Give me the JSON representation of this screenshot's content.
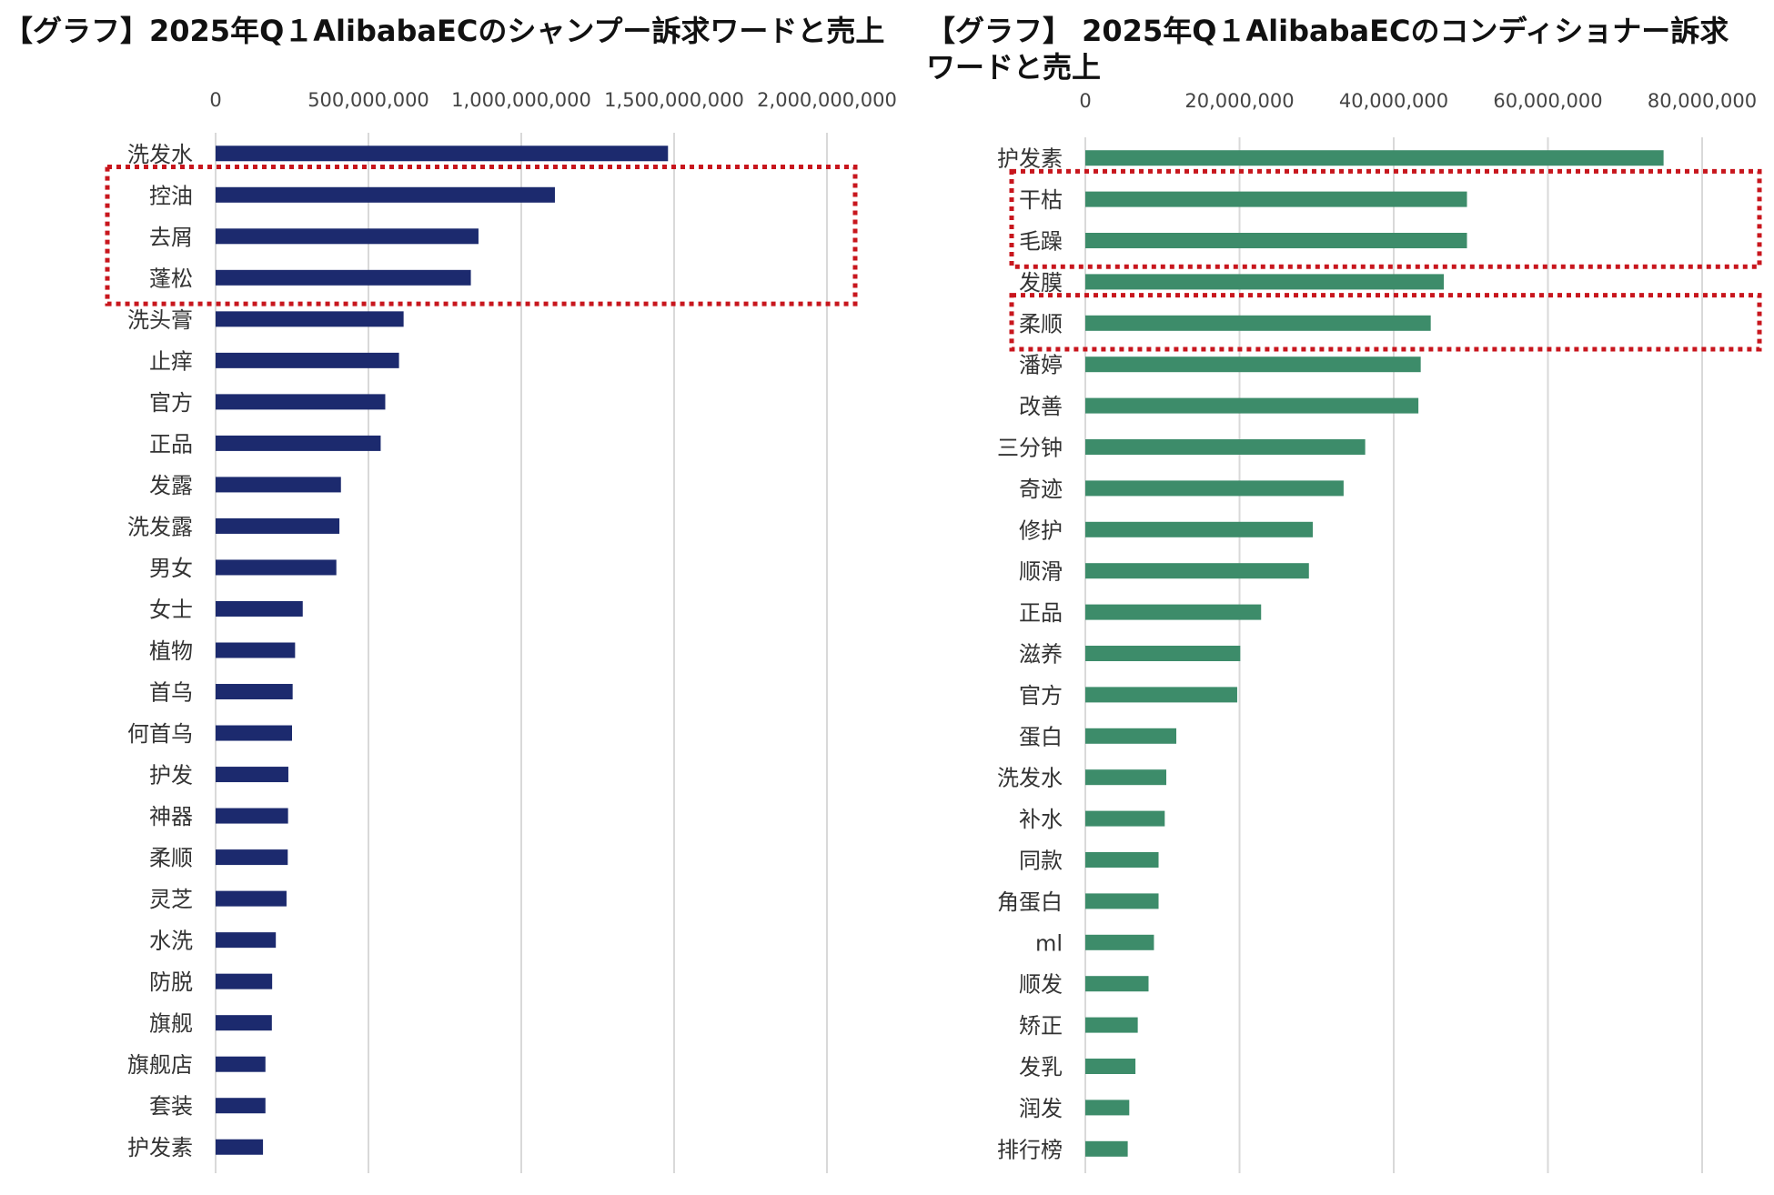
{
  "chart_data": [
    {
      "type": "bar",
      "orientation": "horizontal",
      "title": "【グラフ】2025年Q１AlibabaECのシャンプー訴求ワードと売上",
      "xlabel": "",
      "ylabel": "",
      "xlim": [
        0,
        2000000000
      ],
      "ticks": [
        0,
        500000000,
        1000000000,
        1500000000,
        2000000000
      ],
      "tick_labels": [
        "0",
        "500,000,000",
        "1,000,000,000",
        "1,500,000,000",
        "2,000,000,000"
      ],
      "bar_color": "#1c2a6e",
      "categories": [
        "洗发水",
        "控油",
        "去屑",
        "蓬松",
        "洗头膏",
        "止痒",
        "官方",
        "正品",
        "发露",
        "洗发露",
        "男女",
        "女士",
        "植物",
        "首乌",
        "何首乌",
        "护发",
        "神器",
        "柔顺",
        "灵芝",
        "水洗",
        "防脱",
        "旗舰",
        "旗舰店",
        "套装",
        "护发素"
      ],
      "values": [
        1480000000,
        1110000000,
        860000000,
        835000000,
        615000000,
        600000000,
        555000000,
        540000000,
        410000000,
        405000000,
        395000000,
        285000000,
        260000000,
        252000000,
        250000000,
        238000000,
        237000000,
        236000000,
        232000000,
        197000000,
        185000000,
        184000000,
        163000000,
        163000000,
        155000000
      ],
      "highlight_groups": [
        [
          "控油",
          "去屑",
          "蓬松"
        ]
      ],
      "highlight_color": "#c8161d"
    },
    {
      "type": "bar",
      "orientation": "horizontal",
      "title": "【グラフ】 2025年Q１AlibabaECのコンディショナー訴求ワードと売上",
      "xlabel": "",
      "ylabel": "",
      "xlim": [
        0,
        80000000
      ],
      "ticks": [
        0,
        20000000,
        40000000,
        60000000,
        80000000
      ],
      "tick_labels": [
        "0",
        "20,000,000",
        "40,000,000",
        "60,000,000",
        "80,000,000"
      ],
      "bar_color": "#3d8c6a",
      "categories": [
        "护发素",
        "干枯",
        "毛躁",
        "发膜",
        "柔顺",
        "潘婷",
        "改善",
        "三分钟",
        "奇迹",
        "修护",
        "顺滑",
        "正品",
        "滋养",
        "官方",
        "蛋白",
        "洗发水",
        "补水",
        "同款",
        "角蛋白",
        "ml",
        "顺发",
        "矫正",
        "发乳",
        "润发",
        "排行榜"
      ],
      "values": [
        75000000,
        49500000,
        49500000,
        46500000,
        44800000,
        43500000,
        43200000,
        36300000,
        33500000,
        29500000,
        29000000,
        22800000,
        20100000,
        19700000,
        11800000,
        10500000,
        10300000,
        9500000,
        9500000,
        8900000,
        8200000,
        6800000,
        6500000,
        5700000,
        5500000
      ],
      "highlight_groups": [
        [
          "干枯",
          "毛躁"
        ],
        [
          "柔顺"
        ]
      ],
      "highlight_color": "#c8161d"
    }
  ]
}
